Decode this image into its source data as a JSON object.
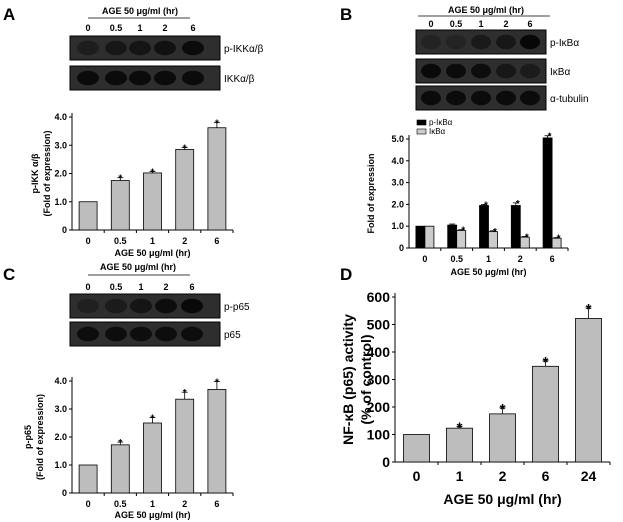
{
  "panel_labels": {
    "a": "A",
    "b": "B",
    "c": "C",
    "d": "D"
  },
  "blot_A": {
    "condition": "AGE 50 μg/ml  (hr)",
    "lanes": [
      "0",
      "0.5",
      "1",
      "2",
      "6"
    ],
    "rows": [
      "p-IKKα/β",
      "IKKα/β"
    ]
  },
  "blot_B": {
    "condition": "AGE 50 μg/ml  (hr)",
    "lanes": [
      "0",
      "0.5",
      "1",
      "2",
      "6"
    ],
    "rows": [
      "p-IκBα",
      "IκBα",
      "α-tubulin"
    ]
  },
  "blot_C": {
    "condition": "AGE 50 μg/ml  (hr)",
    "lanes": [
      "0",
      "0.5",
      "1",
      "2",
      "6"
    ],
    "rows": [
      "p-p65",
      "p65"
    ]
  },
  "chart_data": [
    {
      "id": "A",
      "type": "bar",
      "categories": [
        "0",
        "0.5",
        "1",
        "2",
        "6"
      ],
      "values": [
        1.0,
        1.75,
        2.02,
        2.85,
        3.62
      ],
      "errors": [
        0,
        0.1,
        0.05,
        0.07,
        0.18
      ],
      "significant": [
        false,
        true,
        true,
        true,
        true
      ],
      "ylabel": "p-IKK α/β\n(Fold of expression)",
      "xlabel": "AGE 50 μg/ml (hr)",
      "ylim": [
        0,
        4.0
      ],
      "yticks": [
        "0",
        "1.0",
        "2.0",
        "3.0",
        "4.0"
      ],
      "bar_color": "#bdbdbd"
    },
    {
      "id": "B",
      "type": "bar",
      "categories": [
        "0",
        "0.5",
        "1",
        "2",
        "6"
      ],
      "series": [
        {
          "name": "p-IκBα",
          "values": [
            1.0,
            1.05,
            1.95,
            1.95,
            5.05
          ],
          "errors": [
            0,
            0.05,
            0.05,
            0.12,
            0.1
          ],
          "significant": [
            false,
            false,
            true,
            true,
            true
          ],
          "color": "#000000"
        },
        {
          "name": "IκBα",
          "values": [
            1.0,
            0.8,
            0.75,
            0.5,
            0.45
          ],
          "errors": [
            0,
            0.04,
            0.04,
            0.03,
            0.03
          ],
          "significant": [
            false,
            true,
            true,
            true,
            true
          ],
          "color": "#cccccc"
        }
      ],
      "ylabel": "Fold of expression",
      "xlabel": "AGE 50 μg/ml (hr)",
      "ylim": [
        0,
        5.0
      ],
      "yticks": [
        "0",
        "1.0",
        "2.0",
        "3.0",
        "4.0",
        "5.0"
      ],
      "legend": "top-left"
    },
    {
      "id": "C",
      "type": "bar",
      "categories": [
        "0",
        "0.5",
        "1",
        "2",
        "6"
      ],
      "values": [
        1.0,
        1.72,
        2.5,
        3.35,
        3.7
      ],
      "errors": [
        0,
        0.1,
        0.2,
        0.25,
        0.28
      ],
      "significant": [
        false,
        true,
        true,
        true,
        true
      ],
      "ylabel": "p-p65\n(Fold of expression)",
      "xlabel": "AGE 50 μg/ml (hr)",
      "ylim": [
        0,
        4.0
      ],
      "yticks": [
        "0",
        "1.0",
        "2.0",
        "3.0",
        "4.0"
      ],
      "bar_color": "#bdbdbd"
    },
    {
      "id": "D",
      "type": "bar",
      "categories": [
        "0",
        "1",
        "2",
        "6",
        "24"
      ],
      "values": [
        100,
        123,
        175,
        348,
        522
      ],
      "errors": [
        0,
        6,
        22,
        20,
        38
      ],
      "significant": [
        false,
        true,
        true,
        true,
        true
      ],
      "ylabel": "NF-κB (p65) activity\n(% of control)",
      "xlabel": "AGE 50 μg/ml (hr)",
      "ylim": [
        0,
        600
      ],
      "yticks": [
        "0",
        "100",
        "200",
        "300",
        "400",
        "500",
        "600"
      ],
      "bar_color": "#bdbdbd"
    }
  ],
  "significance_marker": "*"
}
